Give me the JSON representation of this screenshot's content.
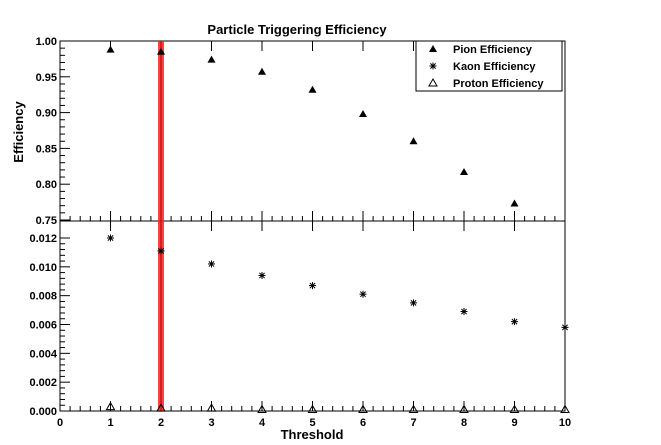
{
  "chart_data": {
    "type": "scatter",
    "title": "Particle Triggering Efficiency",
    "xlabel": "Threshold",
    "ylabel": "Efficiency",
    "x": [
      1,
      2,
      3,
      4,
      5,
      6,
      7,
      8,
      9,
      10
    ],
    "xlim": [
      0,
      10
    ],
    "x_tick_labels": [
      "0",
      "1",
      "2",
      "3",
      "4",
      "5",
      "6",
      "7",
      "8",
      "9",
      "10"
    ],
    "highlight_x": 2,
    "highlight_color": "#ff2020",
    "panels": [
      {
        "name": "upper",
        "ylim": [
          0.75,
          1.0
        ],
        "y_ticks": [
          0.75,
          0.8,
          0.85,
          0.9,
          0.95,
          1.0
        ],
        "y_tick_labels": [
          "0.75",
          "0.80",
          "0.85",
          "0.90",
          "0.95",
          "1.00"
        ]
      },
      {
        "name": "lower",
        "ylim": [
          0.0,
          0.013
        ],
        "y_ticks": [
          0.0,
          0.002,
          0.004,
          0.006,
          0.008,
          0.01,
          0.012
        ],
        "y_tick_labels": [
          "0.000",
          "0.002",
          "0.004",
          "0.006",
          "0.008",
          "0.010",
          "0.012"
        ]
      }
    ],
    "series": [
      {
        "name": "Pion Efficiency",
        "marker": "filled-triangle",
        "x": [
          1,
          2,
          3,
          4,
          5,
          6,
          7,
          8,
          9
        ],
        "values": [
          0.988,
          0.985,
          0.974,
          0.957,
          0.932,
          0.898,
          0.86,
          0.817,
          0.773
        ]
      },
      {
        "name": "Kaon Efficiency",
        "marker": "asterisk",
        "x": [
          1,
          2,
          3,
          4,
          5,
          6,
          7,
          8,
          9,
          10
        ],
        "values": [
          0.012,
          0.0111,
          0.0102,
          0.0094,
          0.0087,
          0.0081,
          0.0075,
          0.0069,
          0.0062,
          0.0058
        ]
      },
      {
        "name": "Proton Efficiency",
        "marker": "open-triangle",
        "x": [
          1,
          2,
          3,
          4,
          5,
          6,
          7,
          8,
          9,
          10
        ],
        "values": [
          0.0003,
          0.0002,
          0.0002,
          0.0001,
          0.0001,
          0.0001,
          0.0001,
          0.0001,
          0.0001,
          0.0001
        ]
      }
    ],
    "legend_position": "top-right"
  }
}
